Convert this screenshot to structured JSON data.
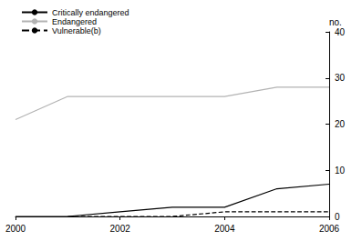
{
  "chart_data": {
    "type": "line",
    "y_label": "no.",
    "x": [
      2000,
      2001,
      2002,
      2003,
      2004,
      2005,
      2006
    ],
    "xlim": [
      2000,
      2006
    ],
    "xticks": [
      2000,
      2002,
      2004,
      2006
    ],
    "ylim": [
      0,
      40
    ],
    "yticks": [
      0,
      10,
      20,
      30,
      40
    ],
    "grid": false,
    "legend": "top-left",
    "series": [
      {
        "name": "Critically endangered",
        "color": "#000000",
        "line_style": "solid",
        "values": [
          0,
          0,
          1,
          2,
          2,
          6,
          7
        ]
      },
      {
        "name": "Endangered",
        "color": "#b3b3b3",
        "line_style": "solid",
        "values": [
          21,
          26,
          26,
          26,
          26,
          28,
          28
        ]
      },
      {
        "name": "Vulnerable(b)",
        "color": "#000000",
        "line_style": "dashed",
        "values": [
          null,
          0,
          0,
          0,
          1,
          1,
          1
        ]
      }
    ]
  }
}
